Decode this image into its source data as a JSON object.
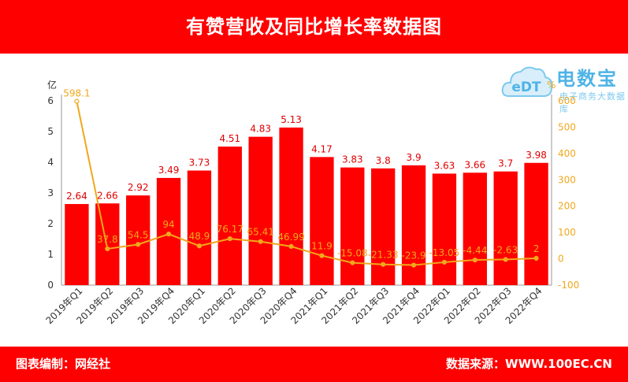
{
  "header": {
    "title": "有赞营收及同比增长率数据图"
  },
  "footer": {
    "left": "图表编制：网经社",
    "right": "数据来源：WWW.100EC.CN"
  },
  "logo": {
    "name": "电数宝",
    "sub": "电子商务大数据库",
    "mark": "eDT"
  },
  "colors": {
    "bar": "#ff0000",
    "line": "#f0a81c",
    "header": "#ff0000",
    "logo": "#4fb3e6"
  },
  "chart_data": {
    "type": "bar",
    "categories": [
      "2019年Q1",
      "2019年Q2",
      "2019年Q3",
      "2019年Q4",
      "2020年Q1",
      "2020年Q2",
      "2020年Q3",
      "2020年Q4",
      "2021年Q1",
      "2021年Q2",
      "2021年Q3",
      "2021年Q4",
      "2022年Q1",
      "2022年Q2",
      "2022年Q3",
      "2022年Q4"
    ],
    "series": [
      {
        "values": [
          2.64,
          2.66,
          2.92,
          3.49,
          3.73,
          4.51,
          4.83,
          5.13,
          4.17,
          3.83,
          3.8,
          3.9,
          3.63,
          3.66,
          3.7,
          3.98
        ],
        "axis": "left",
        "kind": "bar"
      },
      {
        "values": [
          598.1,
          37.8,
          54.5,
          94,
          48.9,
          76.17,
          65.41,
          46.99,
          11.9,
          -15.08,
          -21.33,
          -23.9,
          -13.05,
          -4.44,
          -2.63,
          2
        ],
        "axis": "right",
        "kind": "line"
      }
    ],
    "bar_labels": [
      "2.64",
      "2.66",
      "2.92",
      "3.49",
      "3.73",
      "4.51",
      "4.83",
      "5.13",
      "4.17",
      "3.83",
      "3.8",
      "3.9",
      "3.63",
      "3.66",
      "3.7",
      "3.98"
    ],
    "line_labels": [
      "598.1",
      "37.8",
      "54.5",
      "94",
      "48.9",
      "76.17",
      "65.41",
      "46.99",
      "11.9",
      "-15.08",
      "-21.33",
      "-23.9",
      "-13.05",
      "-4.44",
      "-2.63",
      "2"
    ],
    "ylabel": "亿",
    "y2label": "%",
    "ylim": [
      0,
      6
    ],
    "y2lim": [
      -100,
      600
    ],
    "yticks": [
      "0",
      "1",
      "2",
      "3",
      "4",
      "5",
      "6"
    ],
    "y2ticks": [
      "-100",
      "0",
      "100",
      "200",
      "300",
      "400",
      "500",
      "600"
    ],
    "grid": false,
    "legend": "none"
  }
}
